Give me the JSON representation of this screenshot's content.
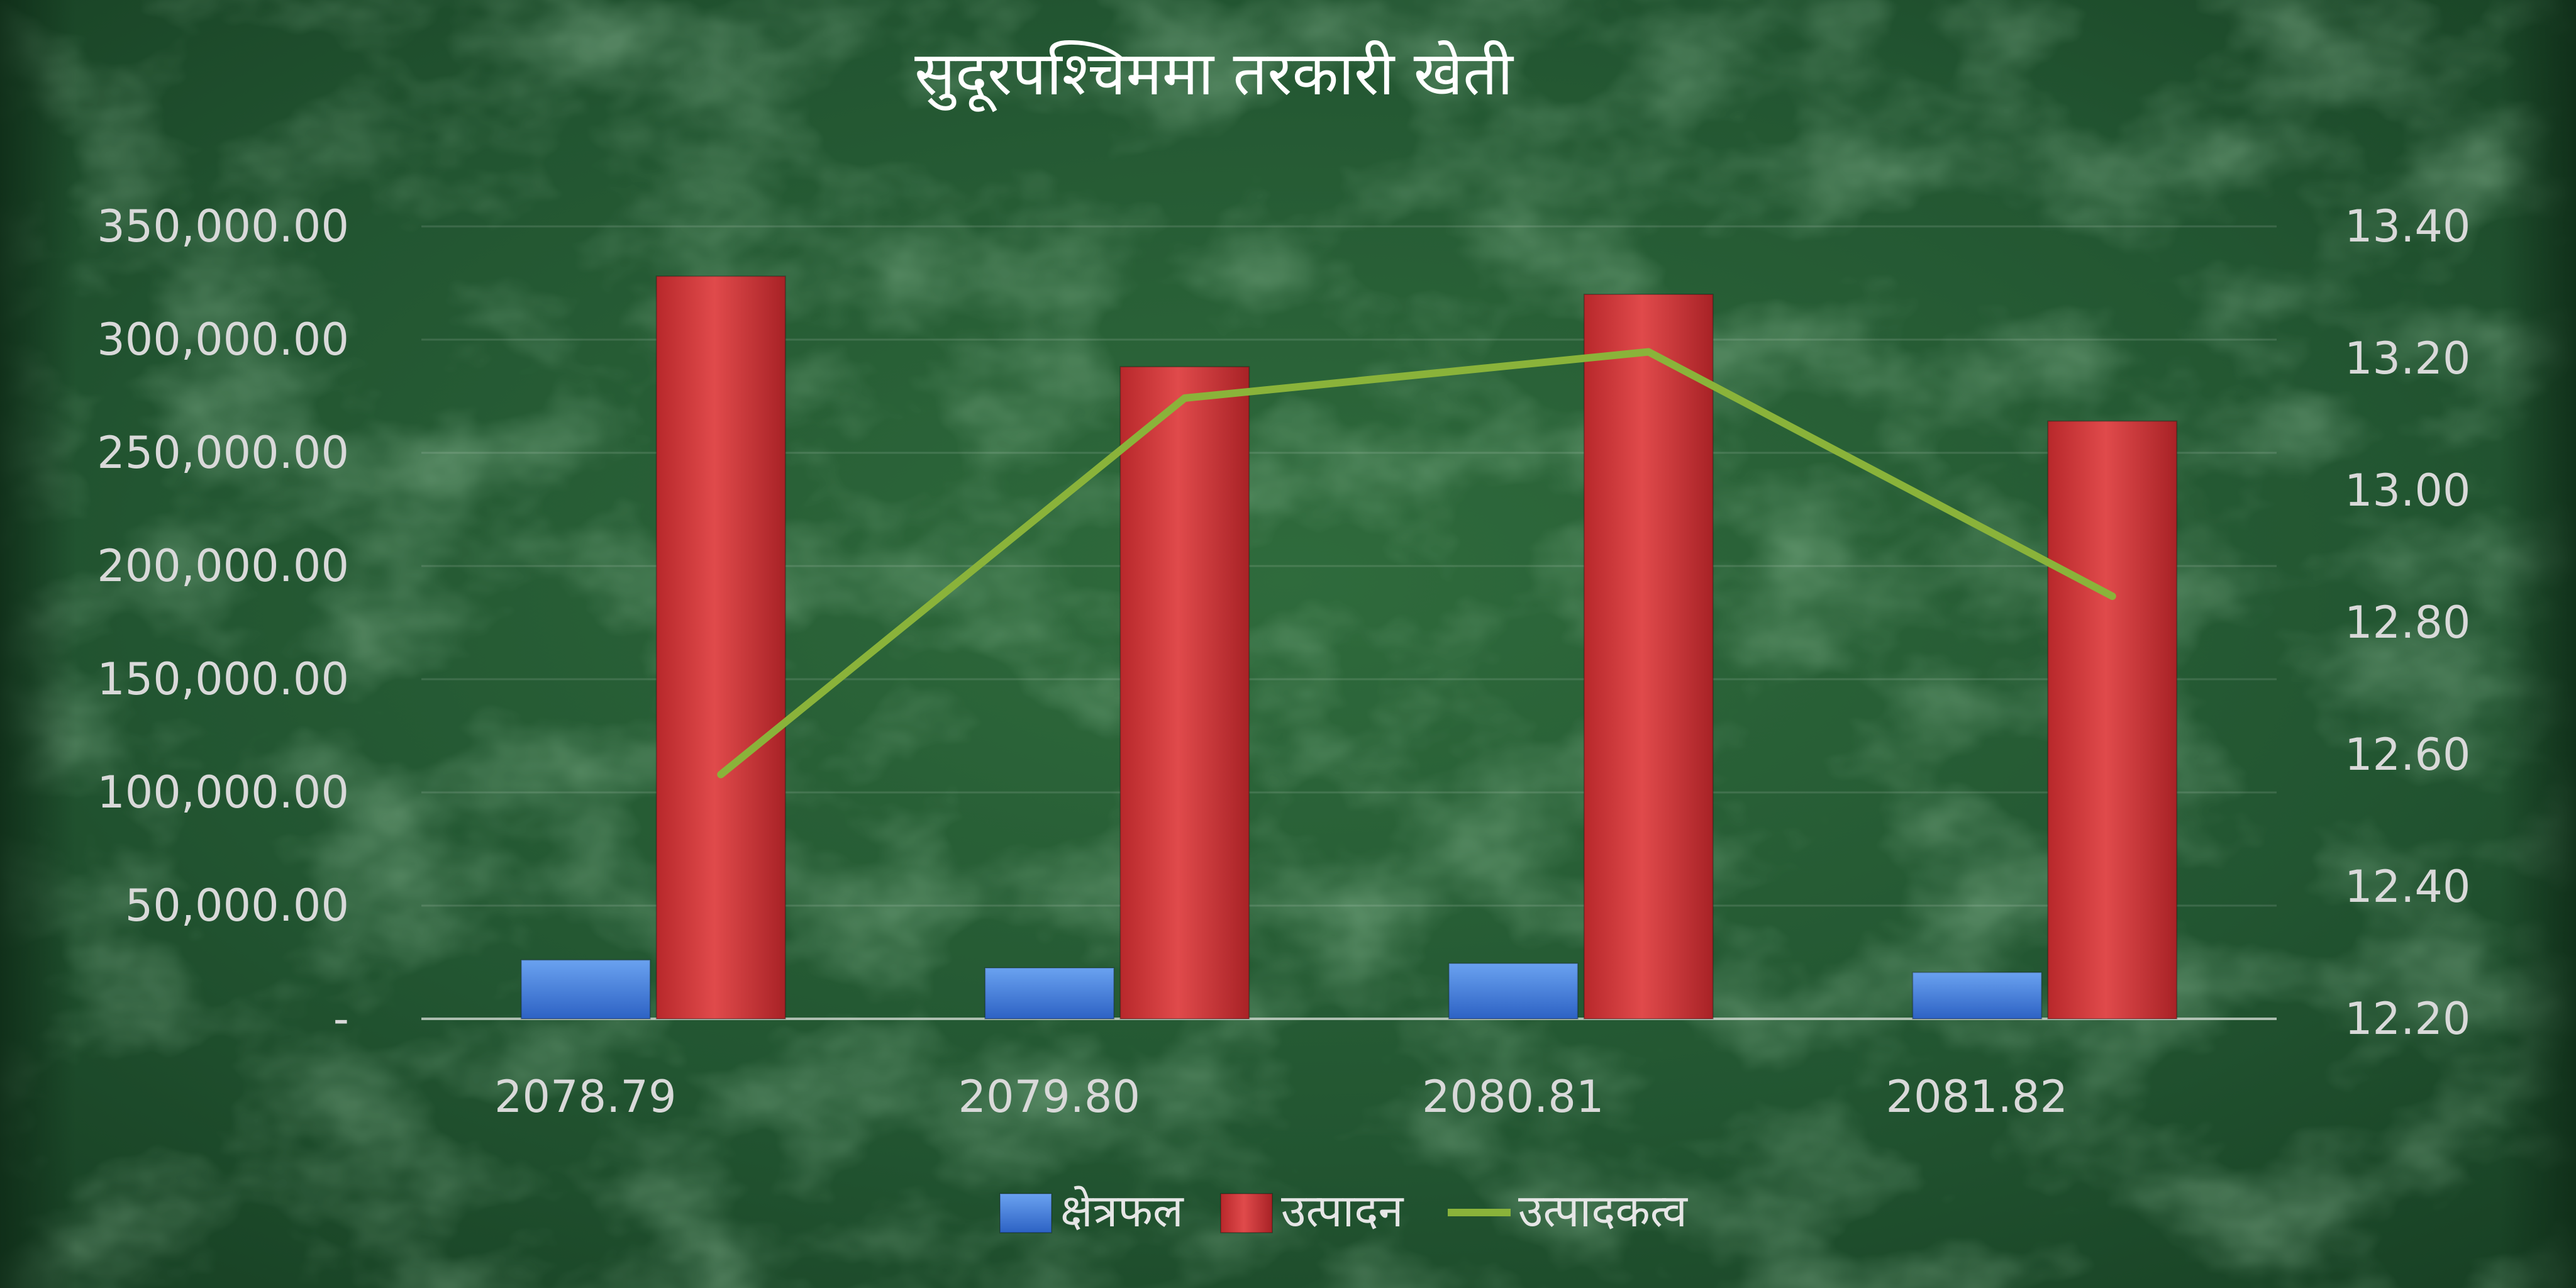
{
  "chart_data": {
    "type": "bar",
    "title": "सुदूरपश्चिममा तरकारी खेती",
    "categories": [
      "2078.79",
      "2079.80",
      "2080.81",
      "2081.82"
    ],
    "series": [
      {
        "name": "क्षेत्रफल",
        "type": "bar",
        "axis": "left",
        "color": "#3a78d8",
        "values": [
          26000,
          22500,
          24500,
          20500
        ]
      },
      {
        "name": "उत्पादन",
        "type": "bar",
        "axis": "left",
        "color": "#d8383a",
        "values": [
          328000,
          288000,
          320000,
          264000
        ]
      },
      {
        "name": "उत्पादकत्व",
        "type": "line",
        "axis": "right",
        "color": "#8ab33a",
        "values": [
          12.57,
          13.14,
          13.21,
          12.84
        ]
      }
    ],
    "y_left": {
      "min": 0,
      "max": 350000,
      "ticks": [
        {
          "value": 0,
          "label": "-"
        },
        {
          "value": 50000,
          "label": "50,000.00"
        },
        {
          "value": 100000,
          "label": "100,000.00"
        },
        {
          "value": 150000,
          "label": "150,000.00"
        },
        {
          "value": 200000,
          "label": "200,000.00"
        },
        {
          "value": 250000,
          "label": "250,000.00"
        },
        {
          "value": 300000,
          "label": "300,000.00"
        },
        {
          "value": 350000,
          "label": "350,000.00"
        }
      ]
    },
    "y_right": {
      "min": 12.2,
      "max": 13.4,
      "ticks": [
        {
          "value": 12.2,
          "label": "12.20"
        },
        {
          "value": 12.4,
          "label": "12.40"
        },
        {
          "value": 12.6,
          "label": "12.60"
        },
        {
          "value": 12.8,
          "label": "12.80"
        },
        {
          "value": 13.0,
          "label": "13.00"
        },
        {
          "value": 13.2,
          "label": "13.20"
        },
        {
          "value": 13.4,
          "label": "13.40"
        }
      ]
    },
    "grid": true,
    "legend_position": "bottom"
  }
}
